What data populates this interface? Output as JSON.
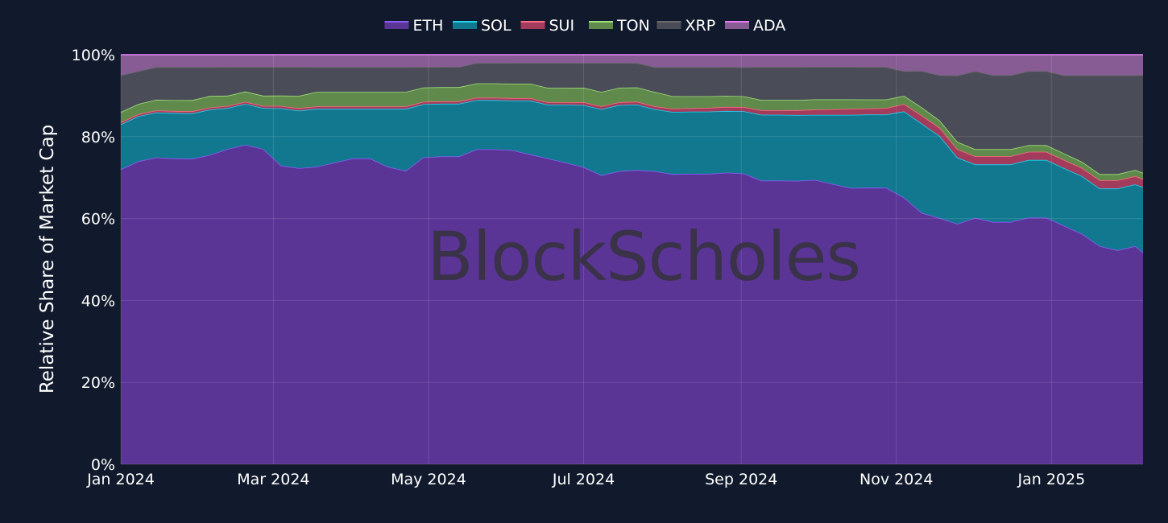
{
  "chart_data": {
    "type": "area",
    "stacked": true,
    "normalized": true,
    "title": "",
    "xlabel": "",
    "ylabel": "Relative Share of Market Cap",
    "ylim": [
      0,
      100
    ],
    "xlim": [
      "2024-01-01",
      "2025-02-06"
    ],
    "y_ticks": [
      "0%",
      "20%",
      "40%",
      "60%",
      "80%",
      "100%"
    ],
    "x_ticks": [
      {
        "date": "2024-01-01",
        "label": "Jan 2024"
      },
      {
        "date": "2024-03-01",
        "label": "Mar 2024"
      },
      {
        "date": "2024-05-01",
        "label": "May 2024"
      },
      {
        "date": "2024-07-01",
        "label": "Jul 2024"
      },
      {
        "date": "2024-09-01",
        "label": "Sep 2024"
      },
      {
        "date": "2024-11-01",
        "label": "Nov 2024"
      },
      {
        "date": "2025-01-01",
        "label": "Jan 2025"
      }
    ],
    "legend_position": "top-center",
    "grid": true,
    "watermark": "BlockScholes",
    "dates": [
      "2024-01-01",
      "2024-01-08",
      "2024-01-15",
      "2024-01-22",
      "2024-01-29",
      "2024-02-05",
      "2024-02-12",
      "2024-02-19",
      "2024-02-26",
      "2024-03-04",
      "2024-03-11",
      "2024-03-18",
      "2024-03-25",
      "2024-04-01",
      "2024-04-08",
      "2024-04-15",
      "2024-04-22",
      "2024-04-29",
      "2024-05-06",
      "2024-05-13",
      "2024-05-20",
      "2024-05-27",
      "2024-06-03",
      "2024-06-10",
      "2024-06-17",
      "2024-06-24",
      "2024-07-01",
      "2024-07-08",
      "2024-07-15",
      "2024-07-22",
      "2024-07-29",
      "2024-08-05",
      "2024-08-12",
      "2024-08-19",
      "2024-08-26",
      "2024-09-02",
      "2024-09-09",
      "2024-09-16",
      "2024-09-23",
      "2024-09-30",
      "2024-10-07",
      "2024-10-14",
      "2024-10-21",
      "2024-10-28",
      "2024-11-04",
      "2024-11-11",
      "2024-11-18",
      "2024-11-25",
      "2024-12-02",
      "2024-12-09",
      "2024-12-16",
      "2024-12-23",
      "2024-12-30",
      "2025-01-06",
      "2025-01-13",
      "2025-01-20",
      "2025-01-27",
      "2025-02-03",
      "2025-02-06"
    ],
    "series": [
      {
        "name": "ETH",
        "color": "#8b5cf6",
        "fill": "#5a3596",
        "values": [
          72,
          74,
          75,
          74,
          74,
          75,
          77,
          78,
          77,
          73,
          72,
          72,
          73,
          74,
          74,
          72,
          71,
          75,
          76,
          76,
          77,
          77,
          76,
          75,
          74,
          73,
          72,
          70,
          71,
          72,
          71,
          70,
          70,
          70,
          71,
          70,
          69,
          69,
          69,
          70,
          69,
          68,
          68,
          68,
          65,
          62,
          60,
          58,
          60,
          59,
          59,
          60,
          60,
          58,
          56,
          53,
          52,
          53,
          52
        ]
      },
      {
        "name": "SOL",
        "color": "#22d3ee",
        "fill": "#12788f",
        "values": [
          11,
          11,
          11,
          11,
          11,
          11,
          10,
          10,
          10,
          14,
          14,
          14,
          13,
          12,
          12,
          14,
          15,
          13,
          13,
          13,
          12,
          12,
          12,
          13,
          13,
          14,
          15,
          16,
          16,
          16,
          15,
          15,
          15,
          15,
          15,
          15,
          16,
          16,
          16,
          16,
          17,
          18,
          18,
          18,
          21,
          22,
          20,
          16,
          13,
          14,
          14,
          14,
          14,
          14,
          14,
          14,
          15,
          15,
          16
        ]
      },
      {
        "name": "SUI",
        "color": "#ff6b81",
        "fill": "#a33b5c",
        "values": [
          0.5,
          0.5,
          0.5,
          0.5,
          0.5,
          0.5,
          0.5,
          0.5,
          0.5,
          0.6,
          0.6,
          0.6,
          0.6,
          0.6,
          0.6,
          0.6,
          0.6,
          0.6,
          0.6,
          0.6,
          0.6,
          0.6,
          0.6,
          0.6,
          0.6,
          0.6,
          0.7,
          0.7,
          0.7,
          0.7,
          0.7,
          0.8,
          0.8,
          0.9,
          1.0,
          1.0,
          1.1,
          1.1,
          1.2,
          1.3,
          1.4,
          1.5,
          1.5,
          1.6,
          1.8,
          2.0,
          2.0,
          2.0,
          2.0,
          2.0,
          2.0,
          2.0,
          2.0,
          2.0,
          2.0,
          2.0,
          2.0,
          2.0,
          2.0
        ]
      },
      {
        "name": "TON",
        "color": "#a3e07a",
        "fill": "#5f8a4c",
        "values": [
          2.5,
          2.5,
          2.6,
          2.6,
          2.7,
          2.8,
          2.5,
          2.5,
          2.5,
          2.5,
          3.0,
          3.5,
          3.5,
          3.5,
          3.5,
          3.5,
          3.5,
          3.5,
          3.5,
          3.5,
          3.5,
          3.5,
          3.5,
          3.5,
          3.5,
          3.5,
          3.5,
          3.5,
          3.5,
          3.5,
          3.5,
          3.0,
          2.9,
          2.8,
          2.7,
          2.6,
          2.5,
          2.5,
          2.5,
          2.5,
          2.4,
          2.3,
          2.2,
          2.1,
          2.0,
          2.0,
          1.8,
          1.8,
          1.7,
          1.7,
          1.7,
          1.6,
          1.6,
          1.6,
          1.5,
          1.5,
          1.5,
          1.5,
          1.5
        ]
      },
      {
        "name": "XRP",
        "color": "#6b6b6b",
        "fill": "#4a4d58",
        "values": [
          9,
          8,
          8,
          8,
          8,
          7,
          7,
          6,
          7,
          7,
          7,
          6,
          6,
          6,
          6,
          6,
          6,
          5,
          5,
          5,
          5,
          5,
          5,
          5,
          6,
          6,
          6,
          7,
          6,
          6,
          6,
          7,
          7,
          7,
          7,
          7,
          8,
          8,
          8,
          8,
          8,
          8,
          8,
          8,
          6,
          9,
          11,
          16,
          19,
          18,
          18,
          18,
          18,
          19,
          21,
          24,
          24,
          23,
          24
        ]
      },
      {
        "name": "ADA",
        "color": "#e879f9",
        "fill": "#875b93",
        "values": [
          5,
          4,
          3,
          3,
          3,
          3,
          3,
          3,
          3,
          3,
          3,
          3,
          3,
          3,
          3,
          3,
          3,
          3,
          3,
          3,
          2,
          2,
          2,
          2,
          2,
          2,
          2,
          2,
          2,
          2,
          3,
          3,
          3,
          3,
          3,
          3,
          3,
          3,
          3,
          3,
          3,
          3,
          3,
          3,
          4,
          4,
          5,
          5,
          4,
          5,
          5,
          4,
          4,
          5,
          5,
          5,
          5,
          5,
          5
        ]
      }
    ]
  }
}
